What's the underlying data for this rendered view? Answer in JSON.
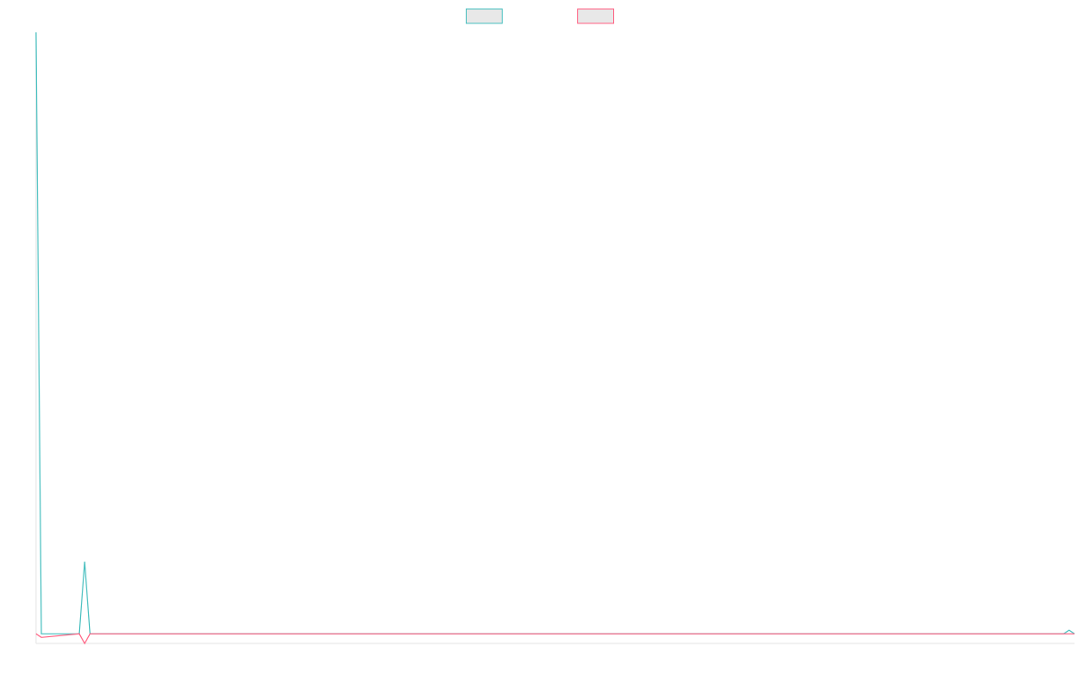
{
  "chart_data": {
    "type": "line",
    "x": [
      0,
      1,
      8,
      9,
      10,
      190,
      191,
      192
    ],
    "xlim": [
      0,
      192
    ],
    "ylim": [
      -1.6,
      100
    ],
    "series": [
      {
        "color": "#4bc0c0",
        "values": [
          100,
          0,
          0,
          12,
          0,
          0,
          0.6,
          0
        ]
      },
      {
        "color": "#ff6384",
        "values": [
          0,
          -0.6,
          0,
          -1.6,
          0,
          0,
          0,
          0
        ]
      }
    ]
  }
}
